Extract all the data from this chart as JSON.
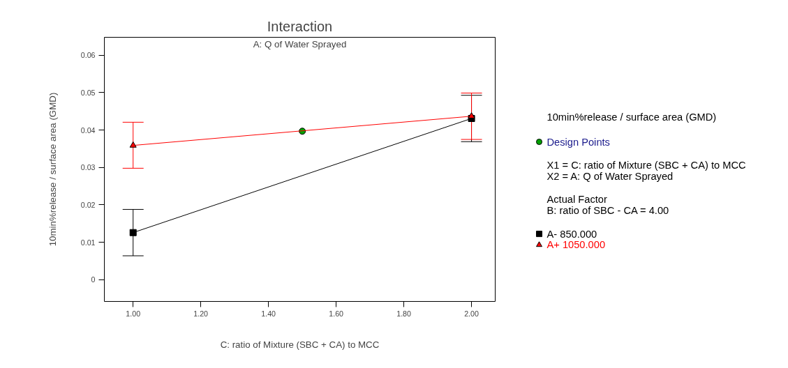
{
  "chart_data": {
    "type": "line",
    "title": "Interaction",
    "subtitle": "A: Q of Water Sprayed",
    "xlabel": "C: ratio of Mixture (SBC + CA) to MCC",
    "ylabel": "10min%release / surface area (GMD)",
    "xlim": [
      0.915,
      2.07
    ],
    "ylim": [
      -0.0058,
      0.0648
    ],
    "xticks": [
      {
        "value": 1,
        "label": "1.00"
      },
      {
        "value": 1.2,
        "label": "1.20"
      },
      {
        "value": 1.4,
        "label": "1.40"
      },
      {
        "value": 1.6,
        "label": "1.60"
      },
      {
        "value": 1.8,
        "label": "1.80"
      },
      {
        "value": 2,
        "label": "2.00"
      }
    ],
    "yticks": [
      0,
      0.01,
      0.02,
      0.03,
      0.04,
      0.05,
      0.06
    ],
    "grid": false,
    "legend": "right",
    "series": [
      {
        "name": "Design Points",
        "type": "scatter",
        "marker": "circle",
        "color": "#00a000",
        "x": [
          1.5
        ],
        "values": [
          0.0397
        ]
      },
      {
        "name": "A- 850.000",
        "marker": "square",
        "color": "#000000",
        "x": [
          1,
          2
        ],
        "values": [
          0.0126,
          0.0431
        ],
        "errors": [
          [
            0.0064,
            0.0188
          ],
          [
            0.0369,
            0.0493
          ]
        ]
      },
      {
        "name": "A+ 1050.000",
        "marker": "triangle",
        "color": "#ff0000",
        "x": [
          1,
          2
        ],
        "values": [
          0.0359,
          0.0437
        ],
        "errors": [
          [
            0.0298,
            0.0421
          ],
          [
            0.0375,
            0.0499
          ]
        ]
      }
    ],
    "annotations": [
      "10min%release / surface area (GMD)",
      "X1 = C: ratio of Mixture (SBC + CA) to MCC",
      "X2 = A: Q of Water Sprayed",
      "Actual Factor",
      "B: ratio of SBC - CA = 4.00"
    ]
  }
}
